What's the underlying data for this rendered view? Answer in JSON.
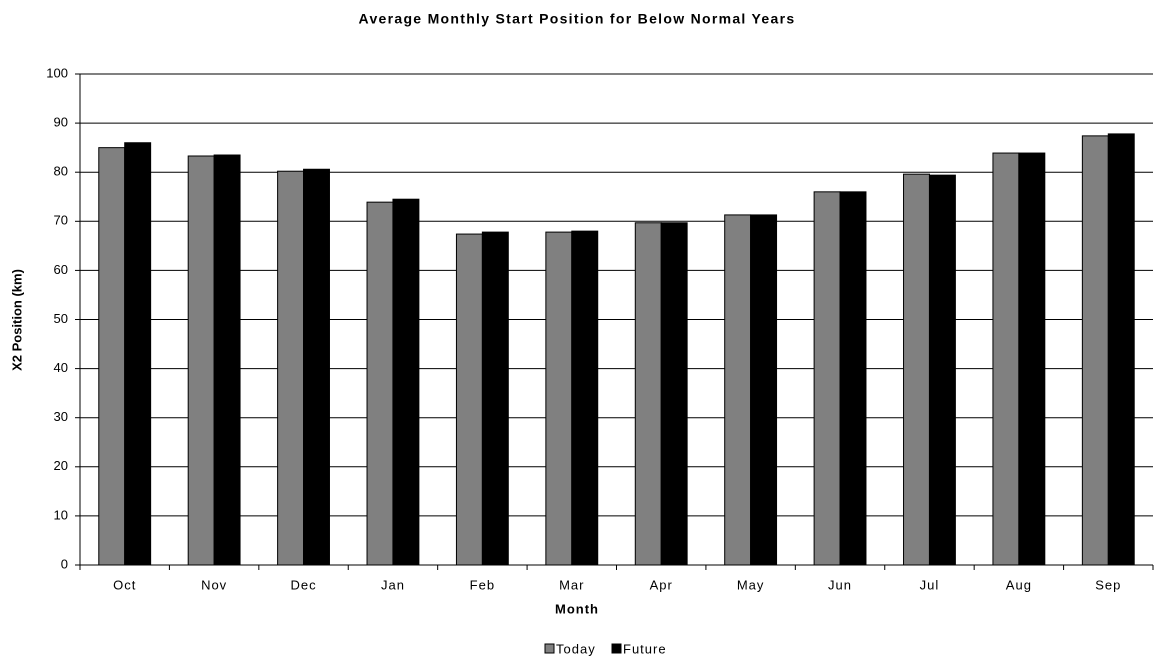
{
  "chart_data": {
    "type": "bar",
    "title": "Average Monthly Start Position for Below Normal Years",
    "x_label": "Month",
    "y_label": "X2 Position (km)",
    "categories": [
      "Oct",
      "Nov",
      "Dec",
      "Jan",
      "Feb",
      "Mar",
      "Apr",
      "May",
      "Jun",
      "Jul",
      "Aug",
      "Sep"
    ],
    "series": [
      {
        "name": "Today",
        "color": "#808080",
        "values": [
          85,
          83.3,
          80.2,
          73.9,
          67.4,
          67.8,
          69.7,
          71.3,
          76,
          79.6,
          83.9,
          87.4
        ]
      },
      {
        "name": "Future",
        "color": "#000000",
        "values": [
          86,
          83.5,
          80.6,
          74.5,
          67.8,
          68,
          69.7,
          71.3,
          76,
          79.4,
          83.9,
          87.8
        ]
      }
    ],
    "ylim": [
      0,
      100
    ],
    "yticks": [
      0,
      10,
      20,
      30,
      40,
      50,
      60,
      70,
      80,
      90,
      100
    ],
    "grid": true,
    "legend": "bottom"
  }
}
